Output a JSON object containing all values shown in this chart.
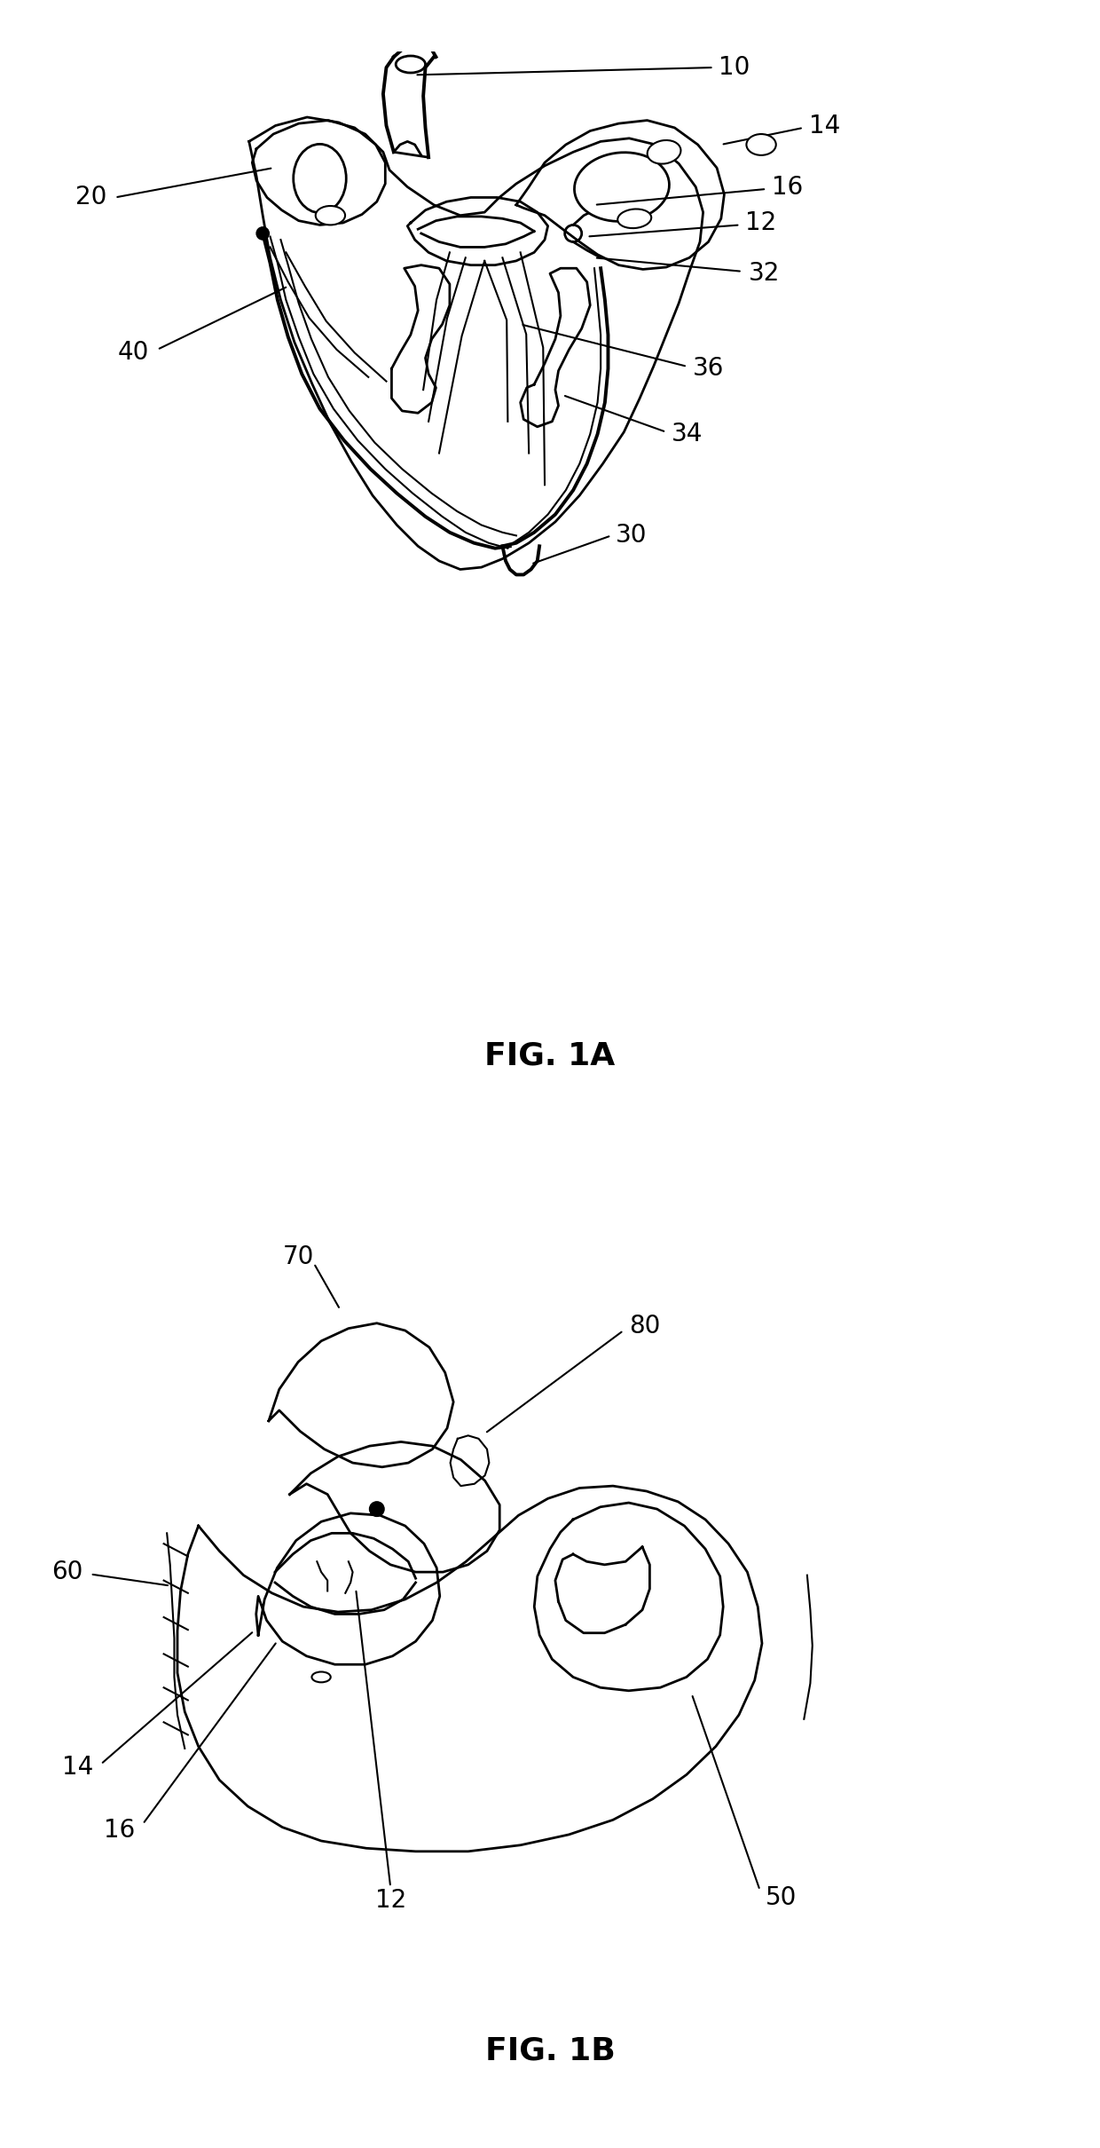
{
  "fig1a_title": "FIG. 1A",
  "fig1b_title": "FIG. 1B",
  "bg_color": "#ffffff",
  "line_color": "#000000",
  "lw_thick": 2.8,
  "lw_med": 2.0,
  "lw_thin": 1.5,
  "label_fontsize": 20,
  "title_fontsize": 26
}
